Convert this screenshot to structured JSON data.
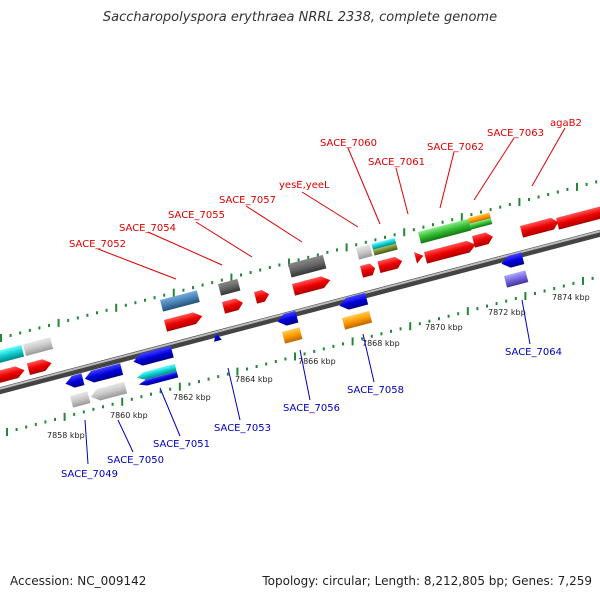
{
  "title": "Saccharopolyspora erythraea NRRL 2338, complete genome",
  "footer": {
    "accession": "Accession: NC_009142",
    "summary": "Topology: circular; Length: 8,212,805 bp; Genes: 7,259"
  },
  "colors": {
    "forward_label": "#dd0000",
    "reverse_label": "#0000bb",
    "backbone": "#888888",
    "tick": "#228833"
  },
  "scale_labels": [
    "7858 kbp",
    "7860 kbp",
    "7862 kbp",
    "7864 kbp",
    "7866 kbp",
    "7868 kbp",
    "7870 kbp",
    "7872 kbp",
    "7874 kbp"
  ],
  "forward_genes": [
    "SACE_7052",
    "SACE_7054",
    "SACE_7055",
    "SACE_7057",
    "yesE,yeeL",
    "SACE_7060",
    "SACE_7061",
    "SACE_7062",
    "SACE_7063",
    "agaB2"
  ],
  "reverse_genes": [
    "SACE_7049",
    "SACE_7050",
    "SACE_7051",
    "SACE_7053",
    "SACE_7056",
    "SACE_7058",
    "SACE_7064"
  ]
}
